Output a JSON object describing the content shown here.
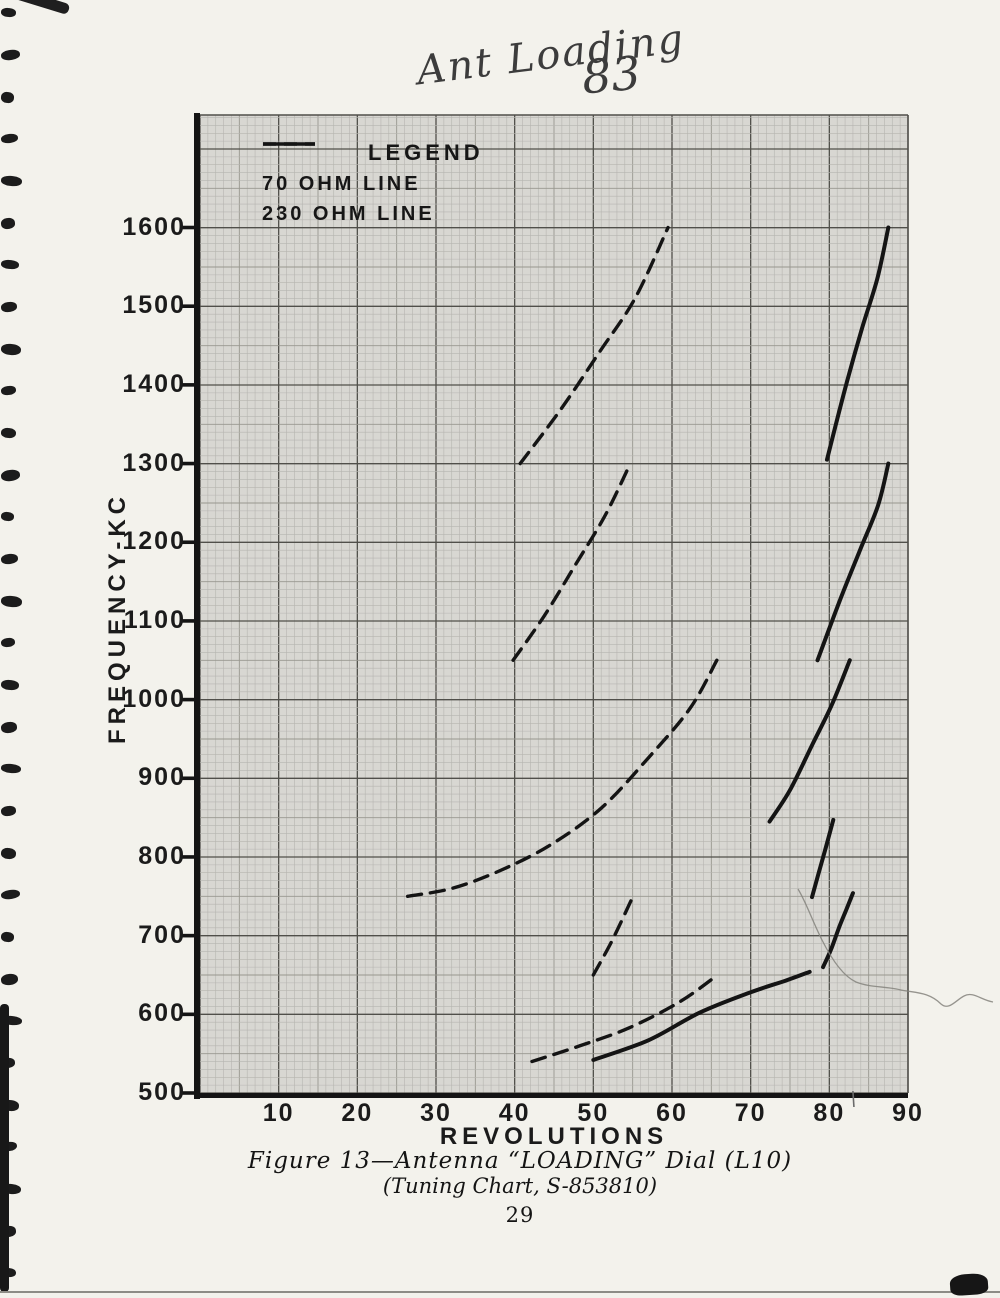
{
  "page": {
    "handwriting_text": "Ant Loading",
    "handwriting_number": "83",
    "caption_line1": "Figure 13—Antenna “LOADING” Dial (L10)",
    "caption_line2": "(Tuning Chart, S-853810)",
    "page_number": "29"
  },
  "colors": {
    "ink": "#141414",
    "paper": "#f3f2ec",
    "grid_bg": "#d8d7d2",
    "grid_minor": "#b6b5b0",
    "grid_medium": "#98978f",
    "grid_major": "#504f4a",
    "pencil": "#6a6a6a",
    "crease": "#85847e"
  },
  "chart_data": {
    "type": "line",
    "title": "",
    "xlabel": "REVOLUTIONS",
    "ylabel": "FREQUENCY-KC",
    "xlim": [
      0,
      90
    ],
    "ylim": [
      500,
      1743
    ],
    "x_ticks": [
      10,
      20,
      30,
      40,
      50,
      60,
      70,
      80,
      90
    ],
    "y_ticks": [
      1600,
      1500,
      1400,
      1300,
      1200,
      1100,
      1000,
      900,
      800,
      700,
      600,
      500
    ],
    "grid": {
      "minor_step_x": 1,
      "minor_step_y": 10,
      "medium_every": 5,
      "major_every": 10
    },
    "legend": {
      "title": "LEGEND",
      "entries": [
        {
          "label": "70 OHM LINE",
          "style": "solid"
        },
        {
          "label": "230 OHM LINE",
          "style": "dashed"
        }
      ]
    },
    "pencil_mark_rev": 83,
    "series": [
      {
        "name": "70 OHM LINE",
        "style": "solid",
        "segments": [
          [
            [
              50.0,
              542
            ],
            [
              57.0,
              567
            ],
            [
              63.5,
              602
            ],
            [
              70.0,
              628
            ],
            [
              74.5,
              643
            ],
            [
              77.5,
              654
            ]
          ],
          [
            [
              79.2,
              660
            ],
            [
              80.2,
              682
            ],
            [
              81.3,
              712
            ],
            [
              82.2,
              734
            ],
            [
              83.0,
              754
            ]
          ],
          [
            [
              77.8,
              749
            ],
            [
              78.6,
              778
            ],
            [
              79.5,
              810
            ],
            [
              80.5,
              847
            ]
          ],
          [
            [
              72.4,
              845
            ],
            [
              75.0,
              885
            ],
            [
              77.8,
              942
            ],
            [
              80.3,
              993
            ],
            [
              82.6,
              1050
            ]
          ],
          [
            [
              78.5,
              1050
            ],
            [
              81.3,
              1125
            ],
            [
              83.9,
              1190
            ],
            [
              86.2,
              1247
            ],
            [
              87.5,
              1300
            ]
          ],
          [
            [
              79.7,
              1305
            ],
            [
              82.0,
              1395
            ],
            [
              84.1,
              1470
            ],
            [
              86.1,
              1535
            ],
            [
              87.5,
              1600
            ]
          ]
        ]
      },
      {
        "name": "230 OHM LINE",
        "style": "dashed",
        "segments": [
          [
            [
              42.2,
              540
            ],
            [
              48.3,
              560
            ],
            [
              54.6,
              583
            ],
            [
              61.0,
              616
            ],
            [
              65.8,
              650
            ]
          ],
          [
            [
              50.0,
              650
            ],
            [
              52.4,
              694
            ],
            [
              55.0,
              749
            ]
          ],
          [
            [
              26.4,
              750
            ],
            [
              32.0,
              760
            ],
            [
              38.0,
              782
            ],
            [
              44.5,
              815
            ],
            [
              51.0,
              862
            ],
            [
              57.0,
              926
            ],
            [
              62.3,
              989
            ],
            [
              65.7,
              1050
            ]
          ],
          [
            [
              39.8,
              1050
            ],
            [
              43.8,
              1107
            ],
            [
              47.7,
              1171
            ],
            [
              51.5,
              1234
            ],
            [
              54.7,
              1300
            ]
          ],
          [
            [
              40.7,
              1300
            ],
            [
              45.8,
              1368
            ],
            [
              50.8,
              1442
            ],
            [
              55.3,
              1510
            ],
            [
              59.5,
              1600
            ]
          ]
        ]
      }
    ]
  }
}
